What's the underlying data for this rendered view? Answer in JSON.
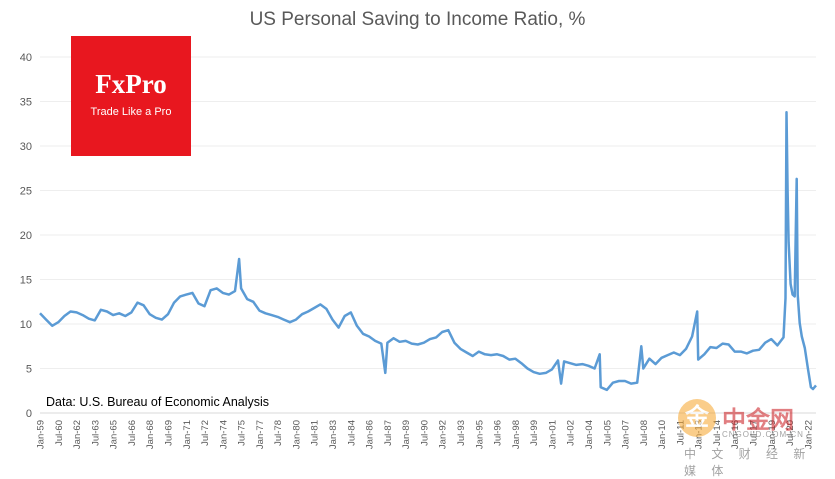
{
  "chart_data": {
    "type": "line",
    "title": "US Personal Saving to Income Ratio, %",
    "xlabel": "",
    "ylabel": "",
    "ylim": [
      0,
      40
    ],
    "yticks": [
      0,
      5,
      10,
      15,
      20,
      25,
      30,
      35,
      40
    ],
    "xlim": [
      "1959-01",
      "2022-09"
    ],
    "grid": "horizontal",
    "legend": "none",
    "line_color": "#5b9bd5",
    "x_tick_labels": [
      "Jan-59",
      "Jul-60",
      "Jan-62",
      "Jul-63",
      "Jan-65",
      "Jul-66",
      "Jan-68",
      "Jul-69",
      "Jan-71",
      "Jul-72",
      "Jan-74",
      "Jul-75",
      "Jan-77",
      "Jul-78",
      "Jan-80",
      "Jul-81",
      "Jan-83",
      "Jul-84",
      "Jan-86",
      "Jul-87",
      "Jan-89",
      "Jul-90",
      "Jan-92",
      "Jul-93",
      "Jan-95",
      "Jul-96",
      "Jan-98",
      "Jul-99",
      "Jan-01",
      "Jul-02",
      "Jan-04",
      "Jul-05",
      "Jan-07",
      "Jul-08",
      "Jan-10",
      "Jul-11",
      "Jan-13",
      "Jul-14",
      "Jan-16",
      "Jul-17",
      "Jan-19",
      "Jul-20",
      "Jan-22"
    ],
    "series": [
      {
        "x": [
          "1959-01",
          "1959-07",
          "1960-01",
          "1960-07",
          "1961-01",
          "1961-07",
          "1962-01",
          "1962-07",
          "1963-01",
          "1963-07",
          "1964-01",
          "1964-07",
          "1965-01",
          "1965-07",
          "1966-01",
          "1966-07",
          "1967-01",
          "1967-07",
          "1968-01",
          "1968-07",
          "1969-01",
          "1969-07",
          "1970-01",
          "1970-07",
          "1971-01",
          "1971-07",
          "1972-01",
          "1972-07",
          "1973-01",
          "1973-07",
          "1974-01",
          "1974-07",
          "1975-01",
          "1975-05",
          "1975-07",
          "1976-01",
          "1976-07",
          "1977-01",
          "1977-07",
          "1978-01",
          "1978-07",
          "1979-01",
          "1979-07",
          "1980-01",
          "1980-07",
          "1981-01",
          "1981-07",
          "1982-01",
          "1982-07",
          "1983-01",
          "1983-07",
          "1984-01",
          "1984-07",
          "1985-01",
          "1985-07",
          "1986-01",
          "1986-07",
          "1987-01",
          "1987-05",
          "1987-07",
          "1988-01",
          "1988-07",
          "1989-01",
          "1989-07",
          "1990-01",
          "1990-07",
          "1991-01",
          "1991-07",
          "1992-01",
          "1992-07",
          "1993-01",
          "1993-07",
          "1994-01",
          "1994-07",
          "1995-01",
          "1995-07",
          "1996-01",
          "1996-07",
          "1997-01",
          "1997-07",
          "1998-01",
          "1998-07",
          "1999-01",
          "1999-07",
          "2000-01",
          "2000-07",
          "2001-01",
          "2001-07",
          "2001-10",
          "2002-01",
          "2002-07",
          "2003-01",
          "2003-07",
          "2004-01",
          "2004-07",
          "2004-12",
          "2005-01",
          "2005-07",
          "2006-01",
          "2006-07",
          "2007-01",
          "2007-07",
          "2008-01",
          "2008-05",
          "2008-07",
          "2009-01",
          "2009-07",
          "2010-01",
          "2010-07",
          "2011-01",
          "2011-07",
          "2012-01",
          "2012-07",
          "2012-12",
          "2013-01",
          "2013-07",
          "2014-01",
          "2014-07",
          "2015-01",
          "2015-07",
          "2016-01",
          "2016-07",
          "2017-01",
          "2017-07",
          "2018-01",
          "2018-07",
          "2019-01",
          "2019-07",
          "2020-01",
          "2020-03",
          "2020-04",
          "2020-05",
          "2020-06",
          "2020-08",
          "2020-10",
          "2020-12",
          "2021-01",
          "2021-02",
          "2021-03",
          "2021-04",
          "2021-05",
          "2021-07",
          "2021-10",
          "2022-01",
          "2022-04",
          "2022-06",
          "2022-09"
        ],
        "values": [
          11.2,
          10.5,
          9.8,
          10.2,
          10.9,
          11.4,
          11.3,
          11.0,
          10.6,
          10.4,
          11.6,
          11.4,
          11.0,
          11.2,
          10.9,
          11.3,
          12.4,
          12.1,
          11.1,
          10.7,
          10.5,
          11.1,
          12.4,
          13.1,
          13.3,
          13.5,
          12.3,
          12.0,
          13.8,
          14.0,
          13.5,
          13.3,
          13.7,
          17.3,
          14.0,
          12.8,
          12.5,
          11.5,
          11.2,
          11.0,
          10.8,
          10.5,
          10.2,
          10.5,
          11.1,
          11.4,
          11.8,
          12.2,
          11.7,
          10.5,
          9.6,
          10.9,
          11.3,
          9.8,
          8.9,
          8.6,
          8.1,
          7.8,
          4.5,
          7.9,
          8.4,
          8.0,
          8.1,
          7.8,
          7.7,
          7.9,
          8.3,
          8.5,
          9.1,
          9.3,
          7.9,
          7.2,
          6.8,
          6.4,
          6.9,
          6.6,
          6.5,
          6.6,
          6.4,
          6.0,
          6.1,
          5.6,
          5.0,
          4.6,
          4.4,
          4.5,
          4.9,
          5.9,
          3.3,
          5.8,
          5.6,
          5.4,
          5.5,
          5.3,
          5.0,
          6.6,
          2.9,
          2.6,
          3.4,
          3.6,
          3.6,
          3.3,
          3.4,
          7.5,
          5.0,
          6.1,
          5.5,
          6.2,
          6.5,
          6.8,
          6.5,
          7.2,
          8.6,
          11.4,
          6.0,
          6.6,
          7.4,
          7.3,
          7.8,
          7.7,
          6.9,
          6.9,
          6.7,
          7.0,
          7.1,
          7.9,
          8.3,
          7.6,
          8.5,
          12.9,
          33.8,
          24.9,
          19.2,
          14.5,
          13.3,
          13.1,
          19.9,
          26.3,
          13.3,
          11.7,
          10.1,
          8.6,
          7.3,
          5.0,
          2.9,
          2.7,
          3.1
        ]
      }
    ]
  },
  "annotations": {
    "source": "Data: U.S. Bureau of Economic Analysis"
  },
  "logo": {
    "name": "FxPro",
    "tagline": "Trade Like a Pro",
    "background": "#e8171f"
  },
  "watermark": {
    "name": "中金网",
    "url": "CNGOLD.COM.CN",
    "subtitle": "中 文 财 经 新 媒 体",
    "coin_glyph": "金"
  }
}
